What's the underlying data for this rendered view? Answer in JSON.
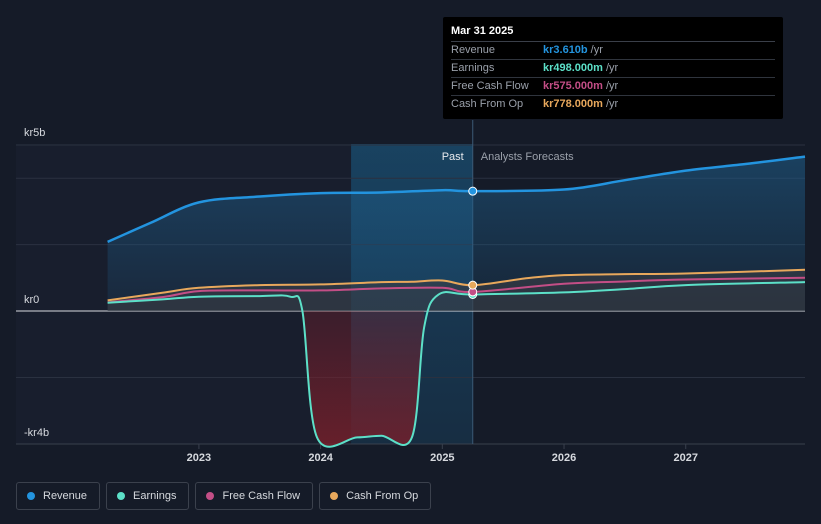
{
  "chart_data": {
    "type": "line",
    "ylim": [
      -4000,
      5000
    ],
    "y_ticks": [
      {
        "value": 5000,
        "label": "kr5b"
      },
      {
        "value": 0,
        "label": "kr0"
      },
      {
        "value": -4000,
        "label": "-kr4b"
      }
    ],
    "x_ticks": [
      {
        "value": 2023.0,
        "label": "2023"
      },
      {
        "value": 2024.0,
        "label": "2024"
      },
      {
        "value": 2025.0,
        "label": "2025"
      },
      {
        "value": 2026.0,
        "label": "2026"
      },
      {
        "value": 2027.0,
        "label": "2027"
      }
    ],
    "xlim": [
      2021.76,
      2027.98
    ],
    "past_label": "Past",
    "forecast_label": "Analysts Forecasts",
    "divider_x": 2025.25,
    "series": [
      {
        "name": "Revenue",
        "color": "#2394df",
        "points": [
          [
            2022.25,
            2080
          ],
          [
            2022.6,
            2650
          ],
          [
            2023.0,
            3270
          ],
          [
            2023.5,
            3450
          ],
          [
            2024.0,
            3550
          ],
          [
            2024.5,
            3570
          ],
          [
            2025.0,
            3640
          ],
          [
            2025.25,
            3610
          ],
          [
            2026.0,
            3660
          ],
          [
            2026.5,
            3940
          ],
          [
            2027.0,
            4230
          ],
          [
            2027.5,
            4430
          ],
          [
            2027.98,
            4650
          ]
        ]
      },
      {
        "name": "Earnings",
        "color": "#5ce0c8",
        "points": [
          [
            2022.25,
            250
          ],
          [
            2022.7,
            350
          ],
          [
            2023.0,
            430
          ],
          [
            2023.5,
            450
          ],
          [
            2023.75,
            430
          ],
          [
            2023.85,
            0
          ],
          [
            2023.97,
            -3800
          ],
          [
            2024.3,
            -3800
          ],
          [
            2024.5,
            -3750
          ],
          [
            2024.75,
            -3800
          ],
          [
            2024.85,
            -500
          ],
          [
            2024.97,
            500
          ],
          [
            2025.25,
            498
          ],
          [
            2026.0,
            560
          ],
          [
            2026.5,
            660
          ],
          [
            2027.0,
            780
          ],
          [
            2027.98,
            870
          ]
        ]
      },
      {
        "name": "Free Cash Flow",
        "color": "#c34e86",
        "points": [
          [
            2022.25,
            260
          ],
          [
            2022.7,
            420
          ],
          [
            2023.0,
            600
          ],
          [
            2023.5,
            620
          ],
          [
            2024.0,
            620
          ],
          [
            2024.5,
            680
          ],
          [
            2025.0,
            700
          ],
          [
            2025.25,
            575
          ],
          [
            2026.0,
            820
          ],
          [
            2026.5,
            890
          ],
          [
            2027.0,
            950
          ],
          [
            2027.98,
            1000
          ]
        ]
      },
      {
        "name": "Cash From Op",
        "color": "#e8a85c",
        "points": [
          [
            2022.25,
            320
          ],
          [
            2022.7,
            550
          ],
          [
            2023.0,
            700
          ],
          [
            2023.5,
            780
          ],
          [
            2024.0,
            800
          ],
          [
            2024.5,
            870
          ],
          [
            2024.75,
            880
          ],
          [
            2025.0,
            920
          ],
          [
            2025.25,
            778
          ],
          [
            2025.7,
            990
          ],
          [
            2026.0,
            1080
          ],
          [
            2026.5,
            1110
          ],
          [
            2027.0,
            1130
          ],
          [
            2027.98,
            1240
          ]
        ]
      }
    ]
  },
  "tooltip": {
    "date": "Mar 31 2025",
    "rows": [
      {
        "label": "Revenue",
        "value": "kr3.610b",
        "unit": "/yr",
        "color": "#2394df"
      },
      {
        "label": "Earnings",
        "value": "kr498.000m",
        "unit": "/yr",
        "color": "#5ce0c8"
      },
      {
        "label": "Free Cash Flow",
        "value": "kr575.000m",
        "unit": "/yr",
        "color": "#c34e86"
      },
      {
        "label": "Cash From Op",
        "value": "kr778.000m",
        "unit": "/yr",
        "color": "#e8a85c"
      }
    ]
  },
  "legend": [
    {
      "label": "Revenue",
      "color": "#2394df"
    },
    {
      "label": "Earnings",
      "color": "#5ce0c8"
    },
    {
      "label": "Free Cash Flow",
      "color": "#c34e86"
    },
    {
      "label": "Cash From Op",
      "color": "#e8a85c"
    }
  ]
}
